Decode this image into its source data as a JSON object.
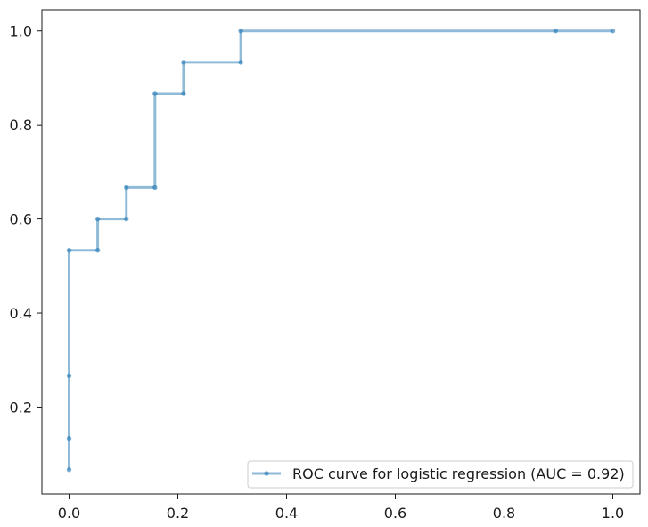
{
  "chart_data": {
    "type": "line",
    "title": "",
    "xlabel": "",
    "ylabel": "",
    "xlim": [
      -0.05,
      1.05
    ],
    "ylim": [
      0.015,
      1.045
    ],
    "x_ticks": [
      0.0,
      0.2,
      0.4,
      0.6,
      0.8,
      1.0
    ],
    "x_tick_labels": [
      "0.0",
      "0.2",
      "0.4",
      "0.6",
      "0.8",
      "1.0"
    ],
    "y_ticks": [
      0.2,
      0.4,
      0.6,
      0.8,
      1.0
    ],
    "y_tick_labels": [
      "0.2",
      "0.4",
      "0.6",
      "0.8",
      "1.0"
    ],
    "grid": false,
    "legend_position": "lower-right",
    "series": [
      {
        "name": "ROC curve for logistic regression (AUC = 0.92)",
        "color": "#1f77b4",
        "drawstyle": "steps-post",
        "marker": "dot",
        "x": [
          0.0,
          0.0,
          0.0,
          0.0,
          0.0526,
          0.0526,
          0.1053,
          0.1053,
          0.1579,
          0.1579,
          0.2105,
          0.2105,
          0.3158,
          0.3158,
          0.8947,
          1.0
        ],
        "y": [
          0.0667,
          0.1333,
          0.2667,
          0.5333,
          0.5333,
          0.6,
          0.6,
          0.6667,
          0.6667,
          0.8667,
          0.8667,
          0.9333,
          0.9333,
          1.0,
          1.0,
          1.0
        ]
      }
    ]
  }
}
